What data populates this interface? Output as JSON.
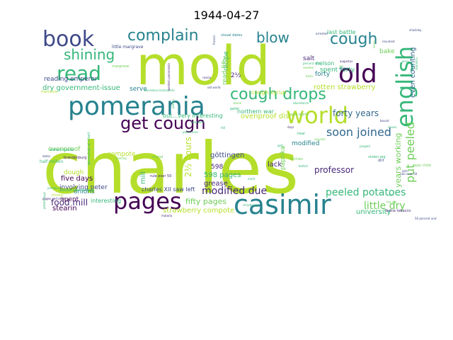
{
  "figure": {
    "title": "1944-04-27"
  },
  "palette": {
    "lime": "#b5de2b",
    "green": "#6ece58",
    "teal": "#35b779",
    "bluegreen": "#26828e",
    "blue": "#3e4989",
    "navy": "#31688e",
    "purple": "#482878",
    "darkpurple": "#440154",
    "cyan": "#1f9e89"
  },
  "words": [
    {
      "text": "charles",
      "color": "lime"
    },
    {
      "text": "mold",
      "color": "lime"
    },
    {
      "text": "pomerania",
      "color": "bluegreen"
    },
    {
      "text": "casimir",
      "color": "bluegreen"
    },
    {
      "text": "pages",
      "color": "darkpurple"
    },
    {
      "text": "old",
      "color": "darkpurple"
    },
    {
      "text": "world",
      "color": "lime"
    },
    {
      "text": "english",
      "color": "teal"
    },
    {
      "text": "book",
      "color": "blue"
    },
    {
      "text": "read",
      "color": "teal"
    },
    {
      "text": "get cough",
      "color": "darkpurple"
    },
    {
      "text": "cough drops",
      "color": "teal"
    },
    {
      "text": "cough",
      "color": "bluegreen"
    },
    {
      "text": "complain",
      "color": "bluegreen"
    },
    {
      "text": "shining",
      "color": "teal"
    },
    {
      "text": "blow",
      "color": "bluegreen"
    },
    {
      "text": "soon joined",
      "color": "navy"
    },
    {
      "text": "put peeled",
      "color": "green"
    },
    {
      "text": "modified due",
      "color": "purple"
    },
    {
      "text": "peeled potatoes",
      "color": "teal"
    },
    {
      "text": "food mill",
      "color": "purple"
    },
    {
      "text": "little dry",
      "color": "green"
    },
    {
      "text": "forty years",
      "color": "navy"
    },
    {
      "text": "2½ hours",
      "color": "lime"
    },
    {
      "text": "fifty pages",
      "color": "green"
    },
    {
      "text": "strawberry compote",
      "color": "lime"
    },
    {
      "text": "598 pages",
      "color": "teal"
    },
    {
      "text": "five days",
      "color": "darkpurple"
    },
    {
      "text": "professor",
      "color": "purple"
    },
    {
      "text": "years working",
      "color": "green"
    },
    {
      "text": "even counting",
      "color": "navy"
    },
    {
      "text": "ovenproof dish",
      "color": "lime"
    },
    {
      "text": "rotten strawberry",
      "color": "lime"
    },
    {
      "text": "dry government-issue",
      "color": "teal"
    },
    {
      "text": "reading emperor",
      "color": "blue"
    },
    {
      "text": "spent forty",
      "color": "teal"
    },
    {
      "text": "stearin",
      "color": "darkpurple"
    },
    {
      "text": "onions",
      "color": "bluegreen"
    },
    {
      "text": "university",
      "color": "teal"
    },
    {
      "text": "grease",
      "color": "purple"
    },
    {
      "text": "lack",
      "color": "purple"
    },
    {
      "text": "dough",
      "color": "lime"
    },
    {
      "text": "spent",
      "color": "darkpurple"
    },
    {
      "text": "mill",
      "color": "teal"
    },
    {
      "text": "göttingen",
      "color": "blue"
    },
    {
      "text": "modified",
      "color": "bluegreen"
    },
    {
      "text": "compote",
      "color": "lime"
    },
    {
      "text": "forty",
      "color": "bluegreen"
    },
    {
      "text": "salt",
      "color": "purple"
    },
    {
      "text": "bake",
      "color": "green"
    },
    {
      "text": "recipe",
      "color": "teal"
    },
    {
      "text": "serve",
      "color": "bluegreen"
    },
    {
      "text": "ovenproof",
      "color": "green"
    },
    {
      "text": "598",
      "color": "purple"
    },
    {
      "text": "2½",
      "color": "purple"
    },
    {
      "text": "read fifty",
      "color": "green"
    },
    {
      "text": "involving peter",
      "color": "blue"
    },
    {
      "text": "interesting",
      "color": "teal"
    },
    {
      "text": "paprika",
      "color": "green"
    },
    {
      "text": "nelson",
      "color": "teal"
    },
    {
      "text": "last battle",
      "color": "teal"
    },
    {
      "text": "northern war",
      "color": "teal"
    },
    {
      "text": "but…very interesting",
      "color": "teal"
    },
    {
      "text": "charles XII saw left",
      "color": "blue"
    },
    {
      "text": "cough syrup",
      "color": "lime"
    },
    {
      "text": "little margrave",
      "color": "blue"
    },
    {
      "text": "william bauke",
      "color": "teal"
    },
    {
      "text": "brandenburg",
      "color": "purple"
    },
    {
      "text": "western pomerania",
      "color": "teal"
    },
    {
      "text": "half million",
      "color": "teal"
    },
    {
      "text": "pages and other",
      "color": "purple"
    },
    {
      "text": "potato bugs",
      "color": "teal"
    },
    {
      "text": "bahia tobacco",
      "color": "purple"
    },
    {
      "text": "rio de",
      "color": "green"
    },
    {
      "text": "new world",
      "color": "green"
    },
    {
      "text": "poor child",
      "color": "green"
    },
    {
      "text": "malaria",
      "color": "purple"
    },
    {
      "text": "strong",
      "color": "lime"
    },
    {
      "text": "dates",
      "color": "blue"
    },
    {
      "text": "sound",
      "color": "green"
    },
    {
      "text": "jamaica",
      "color": "teal"
    },
    {
      "text": "pomerania",
      "color": "teal"
    },
    {
      "text": "augustus",
      "color": "purple"
    },
    {
      "text": "basis",
      "color": "green"
    },
    {
      "text": "stolen pig",
      "color": "teal"
    },
    {
      "text": "gets",
      "color": "teal"
    },
    {
      "text": "art",
      "color": "green"
    },
    {
      "text": "whites",
      "color": "navy"
    },
    {
      "text": "kitchen",
      "color": "green"
    },
    {
      "text": "bolted",
      "color": "teal"
    },
    {
      "text": "dirt",
      "color": "blue"
    },
    {
      "text": "genealogical chart",
      "color": "teal"
    },
    {
      "text": "stinking",
      "color": "green"
    },
    {
      "text": "francisca",
      "color": "lime"
    },
    {
      "text": "margrave",
      "color": "green"
    },
    {
      "text": "rule over 50",
      "color": "purple"
    },
    {
      "text": "wars",
      "color": "teal"
    },
    {
      "text": "uppsala",
      "color": "green"
    },
    {
      "text": "abundance",
      "color": "teal"
    },
    {
      "text": "visual dates",
      "color": "bluegreen"
    },
    {
      "text": "percent and",
      "color": "teal"
    },
    {
      "text": "arrested",
      "color": "blue"
    },
    {
      "text": "resumed",
      "color": "blue"
    },
    {
      "text": "slaves",
      "color": "teal"
    },
    {
      "text": "days",
      "color": "purple"
    },
    {
      "text": "loves",
      "color": "green"
    },
    {
      "text": "peter",
      "color": "teal"
    },
    {
      "text": "francis",
      "color": "blue"
    },
    {
      "text": "stanislaus leszczyński",
      "color": "teal"
    },
    {
      "text": "western pomerania",
      "color": "purple"
    },
    {
      "text": "wounded",
      "color": "teal"
    },
    {
      "text": "pieces",
      "color": "teal"
    },
    {
      "text": "sweden",
      "color": "green"
    },
    {
      "text": "hear",
      "color": "teal"
    },
    {
      "text": "russia",
      "color": "purple"
    },
    {
      "text": "old world",
      "color": "blue"
    },
    {
      "text": "bleak",
      "color": "green"
    },
    {
      "text": "fell",
      "color": "teal"
    },
    {
      "text": "50 percent and",
      "color": "blue"
    },
    {
      "text": "strasbourg",
      "color": "teal"
    },
    {
      "text": "rule over 50",
      "color": "blue"
    },
    {
      "text": "john",
      "color": "blue"
    },
    {
      "text": "river",
      "color": "teal"
    },
    {
      "text": "shackley",
      "color": "blue"
    },
    {
      "text": "statistics",
      "color": "teal"
    },
    {
      "text": "bound",
      "color": "blue"
    },
    {
      "text": "mold",
      "color": "teal"
    },
    {
      "text": "jangled",
      "color": "teal"
    }
  ]
}
